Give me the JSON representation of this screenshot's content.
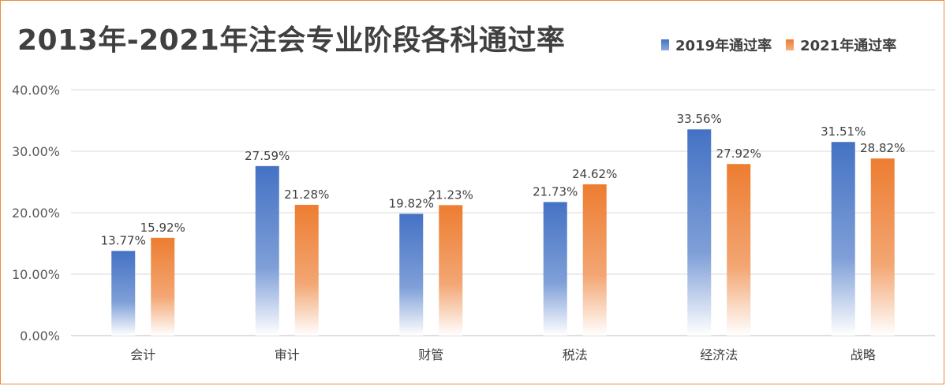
{
  "chart_data": {
    "type": "bar",
    "title": "2013年-2021年注会专业阶段各科通过率",
    "categories": [
      "会计",
      "审计",
      "财管",
      "税法",
      "经济法",
      "战略"
    ],
    "series": [
      {
        "name": "2019年通过率",
        "color": "#4472c4",
        "values": [
          13.77,
          27.59,
          19.82,
          21.73,
          33.56,
          31.51
        ],
        "labels": [
          "13.77%",
          "27.59%",
          "19.82%",
          "21.73%",
          "33.56%",
          "31.51%"
        ]
      },
      {
        "name": "2021年通过率",
        "color": "#ed7d31",
        "values": [
          15.92,
          21.28,
          21.23,
          24.62,
          27.92,
          28.82
        ],
        "labels": [
          "15.92%",
          "21.28%",
          "21.23%",
          "24.62%",
          "27.92%",
          "28.82%"
        ]
      }
    ],
    "yticks": [
      "0.00%",
      "10.00%",
      "20.00%",
      "30.00%",
      "40.00%"
    ],
    "ylim": [
      0,
      40
    ],
    "grid": true,
    "legend_position": "top-right"
  },
  "colors": {
    "series_2019": "#4472c4",
    "series_2021": "#ed7d31",
    "frame": "#ec8a3c",
    "grid": "#d9d9d9"
  }
}
